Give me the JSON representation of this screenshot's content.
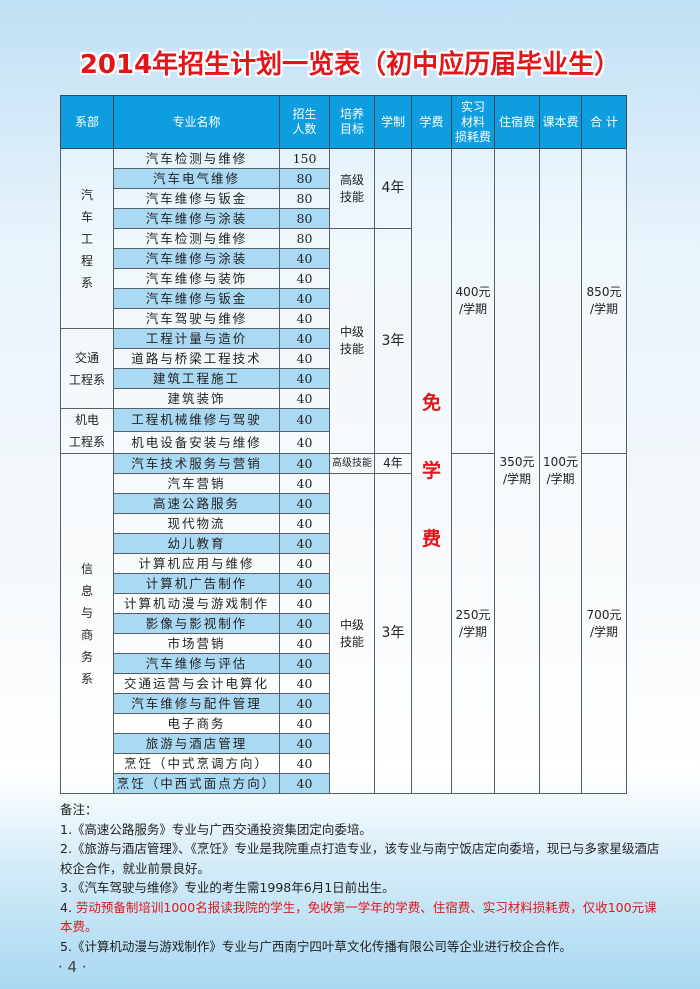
{
  "title": "2014年招生计划一览表（初中应历届毕业生）",
  "headers": [
    "系部",
    "专业名称",
    "招生\n人数",
    "培养\n目标",
    "学制",
    "学费",
    "实习\n材料\n损耗费",
    "住宿费",
    "课本费",
    "合 计"
  ],
  "rows": [
    {
      "major": "汽车检测与维修",
      "count": "150"
    },
    {
      "major": "汽车电气维修",
      "count": "80"
    },
    {
      "major": "汽车维修与钣金",
      "count": "80"
    },
    {
      "major": "汽车维修与涂装",
      "count": "80"
    },
    {
      "major": "汽车检测与维修",
      "count": "80"
    },
    {
      "major": "汽车维修与涂装",
      "count": "40"
    },
    {
      "major": "汽车维修与装饰",
      "count": "40"
    },
    {
      "major": "汽车维修与钣金",
      "count": "40"
    },
    {
      "major": "汽车驾驶与维修",
      "count": "40"
    },
    {
      "major": "工程计量与造价",
      "count": "40"
    },
    {
      "major": "道路与桥梁工程技术",
      "count": "40"
    },
    {
      "major": "建筑工程施工",
      "count": "40"
    },
    {
      "major": "建筑装饰",
      "count": "40"
    },
    {
      "major": "工程机械维修与驾驶",
      "count": "40"
    },
    {
      "major": "机电设备安装与维修",
      "count": "40"
    },
    {
      "major": "汽车技术服务与营销",
      "count": "40"
    },
    {
      "major": "汽车营销",
      "count": "40"
    },
    {
      "major": "高速公路服务",
      "count": "40"
    },
    {
      "major": "现代物流",
      "count": "40"
    },
    {
      "major": "幼儿教育",
      "count": "40"
    },
    {
      "major": "计算机应用与维修",
      "count": "40"
    },
    {
      "major": "计算机广告制作",
      "count": "40"
    },
    {
      "major": "计算机动漫与游戏制作",
      "count": "40"
    },
    {
      "major": "影像与影视制作",
      "count": "40"
    },
    {
      "major": "市场营销",
      "count": "40"
    },
    {
      "major": "汽车维修与评估",
      "count": "40"
    },
    {
      "major": "交通运营与会计电算化",
      "count": "40"
    },
    {
      "major": "汽车维修与配件管理",
      "count": "40"
    },
    {
      "major": "电子商务",
      "count": "40"
    },
    {
      "major": "旅游与酒店管理",
      "count": "40"
    },
    {
      "major": "烹饪（中式烹调方向）",
      "count": "40"
    },
    {
      "major": "烹饪（中西式面点方向）",
      "count": "40"
    }
  ],
  "departments": [
    {
      "label": "汽\n车\n工\n程\n系",
      "span": 9
    },
    {
      "label": "交通\n工程系",
      "span": 4
    },
    {
      "label": "机电\n工程系",
      "span": 2
    },
    {
      "label": "信\n息\n与\n商\n务\n系",
      "span": 17
    }
  ],
  "training": [
    {
      "goal": "高级\n技能",
      "years": "4年",
      "span": 4
    },
    {
      "goal": "中级\n技能",
      "years": "3年",
      "span": 11
    },
    {
      "goal": "高级技能",
      "years": "4年",
      "span": 1
    },
    {
      "goal": "中级\n技能",
      "years": "3年",
      "span": 16
    }
  ],
  "tuition": "免\n\n学\n\n费",
  "materials": [
    {
      "value": "400元\n/学期",
      "span": 15
    },
    {
      "value": "250元\n/学期",
      "span": 17
    }
  ],
  "dorm": "350元\n/学期",
  "books": "100元\n/学期",
  "total": [
    {
      "value": "850元\n/学期",
      "span": 15
    },
    {
      "value": "700元\n/学期",
      "span": 17
    }
  ],
  "notes": {
    "heading": "备注：",
    "items": [
      {
        "text": "1.《高速公路服务》专业与广西交通投资集团定向委培。",
        "highlight": false
      },
      {
        "text": "2.《旅游与酒店管理》、《烹饪》专业是我院重点打造专业，该专业与南宁饭店定向委培，现已与多家星级酒店校企合作，就业前景良好。",
        "highlight": false
      },
      {
        "text": "3.《汽车驾驶与维修》专业的考生需1998年6月1日前出生。",
        "highlight": false
      },
      {
        "prefix": "4. ",
        "text": "劳动预备制培训1000名报读我院的学生，免收第一学年的学费、住宿费、实习材料损耗费，仅收100元课本费。",
        "highlight": true
      },
      {
        "text": "5.《计算机动漫与游戏制作》专业与广西南宁四叶草文化传播有限公司等企业进行校企合作。",
        "highlight": false
      }
    ]
  },
  "page_number": "· 4 ·",
  "colors": {
    "header": "#0e9ee0",
    "alt_row": "#a9d9f3",
    "title": "#e3151b",
    "highlight": "#e3151b"
  }
}
